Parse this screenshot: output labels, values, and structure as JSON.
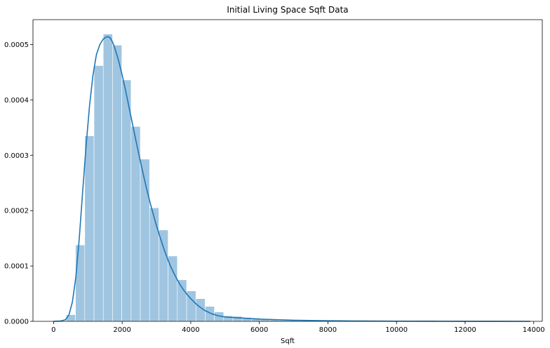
{
  "chart_data": {
    "type": "bar",
    "title": "Initial Living Space Sqft Data",
    "xlabel": "Sqft",
    "ylabel": "",
    "xlim": [
      -600,
      14250
    ],
    "ylim": [
      0,
      0.000545
    ],
    "grid": false,
    "legend": "none",
    "x_ticks": [
      0,
      2000,
      4000,
      6000,
      8000,
      10000,
      12000,
      14000
    ],
    "x_tick_labels": [
      "0",
      "2000",
      "4000",
      "6000",
      "8000",
      "10000",
      "12000",
      "14000"
    ],
    "y_ticks": [
      0,
      0.0001,
      0.0002,
      0.0003,
      0.0004,
      0.0005
    ],
    "y_tick_labels": [
      "0.0000",
      "0.0001",
      "0.0002",
      "0.0003",
      "0.0004",
      "0.0005"
    ],
    "bin_width": 270,
    "bins": [
      {
        "x0": 370,
        "x1": 640,
        "density": 1.2e-05
      },
      {
        "x0": 640,
        "x1": 910,
        "density": 0.000138
      },
      {
        "x0": 910,
        "x1": 1180,
        "density": 0.000335
      },
      {
        "x0": 1180,
        "x1": 1450,
        "density": 0.000462
      },
      {
        "x0": 1450,
        "x1": 1720,
        "density": 0.000519
      },
      {
        "x0": 1720,
        "x1": 1990,
        "density": 0.000499
      },
      {
        "x0": 1990,
        "x1": 2260,
        "density": 0.000436
      },
      {
        "x0": 2260,
        "x1": 2530,
        "density": 0.000352
      },
      {
        "x0": 2530,
        "x1": 2800,
        "density": 0.000293
      },
      {
        "x0": 2800,
        "x1": 3070,
        "density": 0.000205
      },
      {
        "x0": 3070,
        "x1": 3340,
        "density": 0.000165
      },
      {
        "x0": 3340,
        "x1": 3610,
        "density": 0.000118
      },
      {
        "x0": 3610,
        "x1": 3880,
        "density": 7.5e-05
      },
      {
        "x0": 3880,
        "x1": 4150,
        "density": 5.5e-05
      },
      {
        "x0": 4150,
        "x1": 4420,
        "density": 4.1e-05
      },
      {
        "x0": 4420,
        "x1": 4690,
        "density": 2.7e-05
      },
      {
        "x0": 4690,
        "x1": 4960,
        "density": 1.7e-05
      },
      {
        "x0": 4960,
        "x1": 5230,
        "density": 1e-05
      },
      {
        "x0": 5230,
        "x1": 5500,
        "density": 9e-06
      },
      {
        "x0": 5500,
        "x1": 5770,
        "density": 7e-06
      },
      {
        "x0": 5770,
        "x1": 6040,
        "density": 6e-06
      },
      {
        "x0": 6040,
        "x1": 6310,
        "density": 4e-06
      },
      {
        "x0": 6310,
        "x1": 6580,
        "density": 3e-06
      },
      {
        "x0": 6580,
        "x1": 6850,
        "density": 2e-06
      },
      {
        "x0": 6850,
        "x1": 7120,
        "density": 2e-06
      },
      {
        "x0": 7120,
        "x1": 7390,
        "density": 1e-06
      },
      {
        "x0": 7390,
        "x1": 7660,
        "density": 1e-06
      },
      {
        "x0": 7660,
        "x1": 7930,
        "density": 1e-06
      },
      {
        "x0": 7930,
        "x1": 8200,
        "density": 1e-06
      }
    ],
    "kde": {
      "x": [
        0,
        200,
        350,
        450,
        550,
        650,
        750,
        850,
        950,
        1050,
        1150,
        1250,
        1350,
        1450,
        1550,
        1600,
        1650,
        1700,
        1750,
        1800,
        1900,
        2000,
        2100,
        2200,
        2300,
        2400,
        2500,
        2600,
        2700,
        2800,
        2900,
        3000,
        3100,
        3200,
        3300,
        3400,
        3500,
        3600,
        3700,
        3800,
        3900,
        4000,
        4200,
        4400,
        4600,
        4800,
        5000,
        5200,
        5500,
        6000,
        6500,
        7000,
        7500,
        8000,
        9000,
        10000,
        11000,
        12000,
        13000,
        13900
      ],
      "y": [
        0.0,
        5e-07,
        3e-06,
        1.2e-05,
        3.5e-05,
        8e-05,
        0.00015,
        0.000235,
        0.000318,
        0.00039,
        0.000445,
        0.000482,
        0.0005,
        0.00051,
        0.000514,
        0.000514,
        0.000512,
        0.000507,
        0.0005,
        0.000491,
        0.00047,
        0.000445,
        0.000417,
        0.000387,
        0.000357,
        0.000327,
        0.000298,
        0.00027,
        0.000243,
        0.000218,
        0.000195,
        0.000173,
        0.000153,
        0.000134,
        0.000117,
        0.000101,
        8.8e-05,
        7.6e-05,
        6.5e-05,
        5.6e-05,
        4.8e-05,
        4.1e-05,
        2.9e-05,
        2e-05,
        1.4e-05,
        1e-05,
        8e-06,
        7e-06,
        6e-06,
        4e-06,
        3e-06,
        2e-06,
        1.5e-06,
        1e-06,
        5e-07,
        3e-07,
        2e-07,
        1e-07,
        5e-08,
        0.0
      ]
    },
    "colors": {
      "bar_fill": "#9fc5e1",
      "bar_edge": "#ffffff",
      "kde_line": "#1f77b4",
      "axis": "#000000"
    }
  }
}
